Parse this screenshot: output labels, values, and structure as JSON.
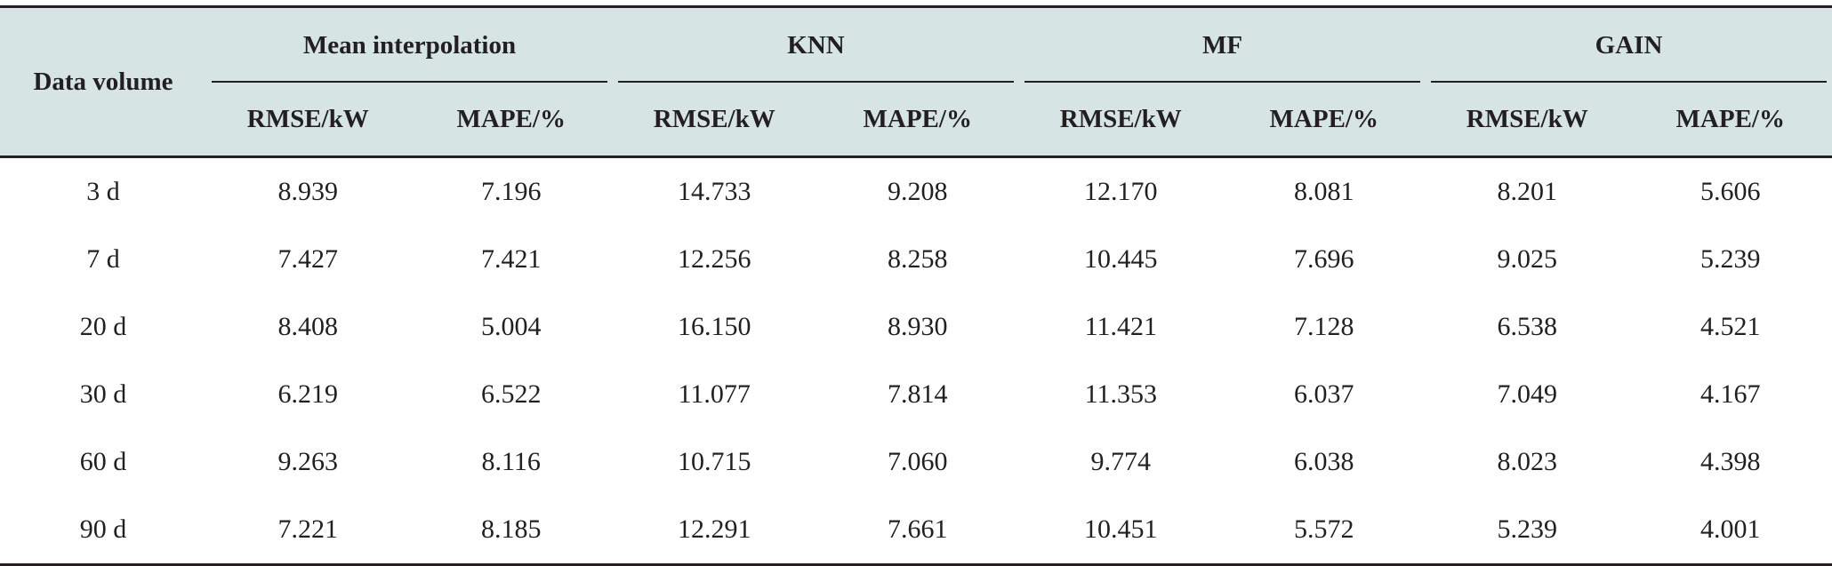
{
  "table": {
    "row_header_label": "Data volume",
    "groups": [
      "Mean interpolation",
      "KNN",
      "MF",
      "GAIN"
    ],
    "metrics": [
      "RMSE/kW",
      "MAPE/%",
      "RMSE/kW",
      "MAPE/%",
      "RMSE/kW",
      "MAPE/%",
      "RMSE/kW",
      "MAPE/%"
    ],
    "rows": [
      [
        "3 d",
        "8.939",
        "7.196",
        "14.733",
        "9.208",
        "12.170",
        "8.081",
        "8.201",
        "5.606"
      ],
      [
        "7 d",
        "7.427",
        "7.421",
        "12.256",
        "8.258",
        "10.445",
        "7.696",
        "9.025",
        "5.239"
      ],
      [
        "20 d",
        "8.408",
        "5.004",
        "16.150",
        "8.930",
        "11.421",
        "7.128",
        "6.538",
        "4.521"
      ],
      [
        "30 d",
        "6.219",
        "6.522",
        "11.077",
        "7.814",
        "11.353",
        "6.037",
        "7.049",
        "4.167"
      ],
      [
        "60 d",
        "9.263",
        "8.116",
        "10.715",
        "7.060",
        "9.774",
        "6.038",
        "8.023",
        "4.398"
      ],
      [
        "90 d",
        "7.221",
        "8.185",
        "12.291",
        "7.661",
        "10.451",
        "5.572",
        "5.239",
        "4.001"
      ]
    ]
  }
}
